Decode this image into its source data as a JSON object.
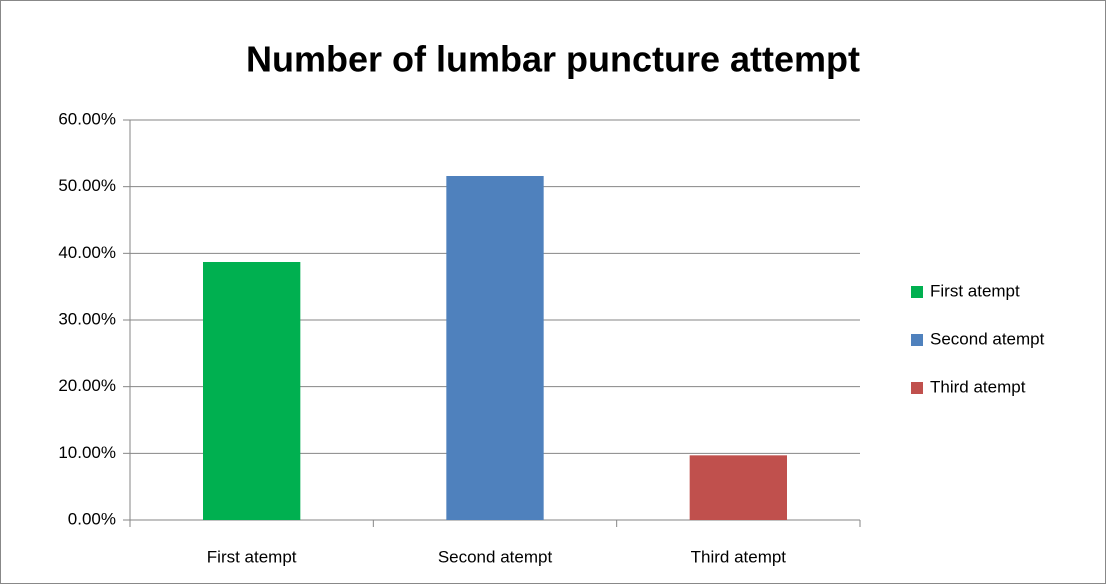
{
  "chart_data": {
    "type": "bar",
    "title": "Number of lumbar puncture attempt",
    "categories": [
      "First atempt",
      "Second atempt",
      "Third atempt"
    ],
    "values": [
      38.7,
      51.6,
      9.7
    ],
    "colors": [
      "#00b050",
      "#4f81bd",
      "#c0504d"
    ],
    "ylim": [
      0,
      60
    ],
    "yticks": [
      {
        "value": 0,
        "label": "0.00%"
      },
      {
        "value": 10,
        "label": "10.00%"
      },
      {
        "value": 20,
        "label": "20.00%"
      },
      {
        "value": 30,
        "label": "30.00%"
      },
      {
        "value": 40,
        "label": "40.00%"
      },
      {
        "value": 50,
        "label": "50.00%"
      },
      {
        "value": 60,
        "label": "60.00%"
      }
    ],
    "grid": true,
    "legend": "right"
  }
}
